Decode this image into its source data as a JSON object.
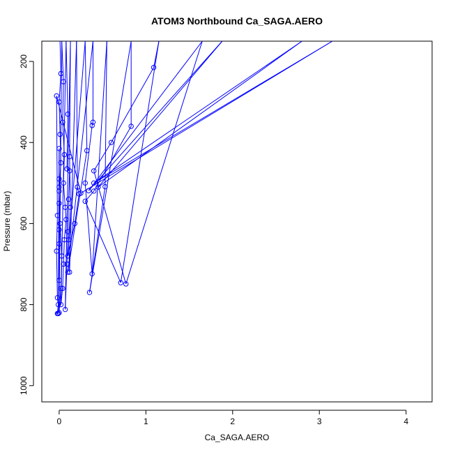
{
  "colors": {
    "series": "#0000ff",
    "axis": "#000000",
    "background": "#ffffff"
  },
  "chart_data": {
    "type": "scatter",
    "title": "ATOM3 Northbound Ca_SAGA.AERO",
    "xlabel": "Ca_SAGA.AERO",
    "ylabel": "Pressure (mbar)",
    "xlim": [
      -0.2,
      4.3
    ],
    "ylim": [
      1040,
      150
    ],
    "y_reversed": true,
    "grid": false,
    "legend": "none",
    "x_ticks": [
      0,
      1,
      2,
      3,
      4
    ],
    "y_ticks": [
      200,
      400,
      600,
      800,
      1000
    ],
    "marker": "open-circle",
    "connected": true,
    "series": [
      {
        "values": [
          [
            0.01,
            150
          ],
          [
            0.02,
            230
          ],
          [
            0.0,
            300
          ],
          [
            0.01,
            380
          ],
          [
            0.02,
            450
          ],
          [
            0.0,
            520
          ],
          [
            0.01,
            600
          ],
          [
            0.03,
            680
          ],
          [
            0.02,
            760
          ],
          [
            0.0,
            820
          ],
          [
            0.03,
            150
          ],
          [
            0.05,
            250
          ],
          [
            0.04,
            350
          ],
          [
            0.06,
            430
          ],
          [
            0.05,
            500
          ],
          [
            0.07,
            560
          ],
          [
            0.08,
            590
          ],
          [
            0.06,
            640
          ],
          [
            0.05,
            700
          ],
          [
            0.04,
            760
          ],
          [
            0.02,
            800
          ],
          [
            0.08,
            150
          ],
          [
            0.1,
            330
          ],
          [
            0.09,
            465
          ],
          [
            0.12,
            470
          ],
          [
            0.11,
            540
          ],
          [
            0.1,
            620
          ],
          [
            0.09,
            700
          ],
          [
            0.07,
            812
          ],
          [
            0.13,
            150
          ],
          [
            0.12,
            435
          ],
          [
            0.13,
            560
          ],
          [
            0.11,
            640
          ],
          [
            0.12,
            720
          ],
          [
            0.2,
            150
          ],
          [
            0.21,
            510
          ],
          [
            0.23,
            527
          ],
          [
            0.18,
            600
          ],
          [
            0.1,
            680
          ],
          [
            0.3,
            150
          ],
          [
            0.32,
            420
          ],
          [
            0.1,
            720
          ],
          [
            0.39,
            150
          ],
          [
            0.39,
            350
          ],
          [
            0.38,
            358
          ],
          [
            0.3,
            500
          ],
          [
            0.38,
            724
          ],
          [
            0.55,
            150
          ],
          [
            0.53,
            509
          ],
          [
            0.35,
            770
          ],
          [
            0.83,
            150
          ],
          [
            0.83,
            360
          ],
          [
            0.4,
            520
          ],
          [
            0.3,
            545
          ],
          [
            0.71,
            746
          ],
          [
            1.15,
            150
          ],
          [
            1.09,
            215
          ],
          [
            0.6,
            400
          ],
          [
            0.4,
            470
          ],
          [
            0.77,
            749
          ],
          [
            1.65,
            150
          ],
          [
            0.34,
            519
          ],
          [
            1.88,
            150
          ],
          [
            0.45,
            510
          ],
          [
            2.8,
            150
          ],
          [
            0.4,
            500
          ],
          [
            3.15,
            150
          ],
          [
            0.25,
            525
          ],
          [
            -0.03,
            285
          ],
          [
            -0.02,
            580
          ],
          [
            -0.03,
            668
          ],
          [
            -0.02,
            783
          ],
          [
            -0.01,
            800
          ],
          [
            -0.02,
            822
          ],
          [
            -0.01,
            822
          ],
          [
            0.0,
            415
          ],
          [
            0.0,
            490
          ],
          [
            0.0,
            510
          ],
          [
            0.0,
            550
          ],
          [
            0.0,
            615
          ],
          [
            0.0,
            650
          ],
          [
            0.0,
            740
          ]
        ]
      }
    ]
  }
}
